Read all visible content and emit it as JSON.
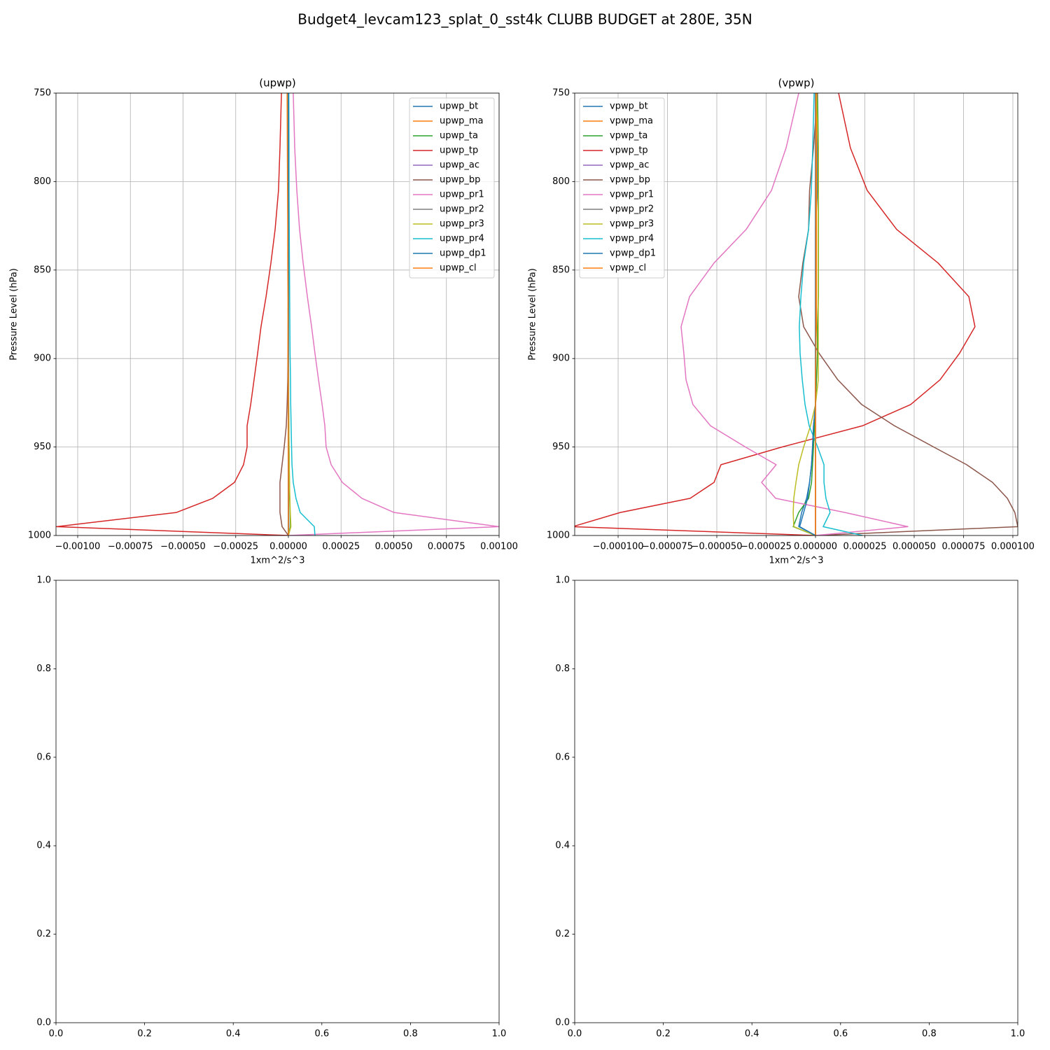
{
  "title": "Budget4_levcam123_splat_0_sst4k CLUBB BUDGET at 280E, 35N",
  "chart_data": [
    {
      "type": "line",
      "title": "(upwp)",
      "x_label": "1xm^2/s^3",
      "y_label": "Pressure Level (hPa)",
      "grid": true,
      "legend": "upper right",
      "xlim": [
        -0.001103,
        0.001
      ],
      "ylim": [
        1000,
        750
      ],
      "xticks": [
        {
          "value": -0.001,
          "label": "−0.00100"
        },
        {
          "value": -0.00075,
          "label": "−0.00075"
        },
        {
          "value": -0.0005,
          "label": "−0.00050"
        },
        {
          "value": -0.00025,
          "label": "−0.00025"
        },
        {
          "value": 0,
          "label": "0.00000"
        },
        {
          "value": 0.00025,
          "label": "0.00025"
        },
        {
          "value": 0.0005,
          "label": "0.00050"
        },
        {
          "value": 0.00075,
          "label": "0.00075"
        },
        {
          "value": 0.001,
          "label": "0.00100"
        }
      ],
      "yticks": [
        750,
        800,
        850,
        900,
        950,
        1000
      ],
      "y": [
        750,
        781,
        805,
        827,
        846,
        865,
        882,
        897,
        912,
        926,
        938,
        950,
        960,
        970,
        979,
        987,
        995,
        1000
      ],
      "series": [
        {
          "name": "upwp_bt",
          "color": "#1f77b4",
          "values": [
            0,
            0,
            0,
            0,
            0,
            0,
            0,
            0,
            0,
            0,
            0,
            0,
            0,
            0,
            0,
            1e-06,
            2e-06,
            0
          ]
        },
        {
          "name": "upwp_ma",
          "color": "#ff7f0e",
          "values": [
            0,
            0,
            0,
            0,
            0,
            0,
            0,
            0,
            0,
            0,
            0,
            0,
            0,
            0,
            0,
            0,
            0,
            0
          ]
        },
        {
          "name": "upwp_ta",
          "color": "#2ca02c",
          "values": [
            0,
            0,
            0,
            0,
            0,
            0,
            0,
            0,
            0,
            1e-06,
            2e-06,
            3e-06,
            4e-06,
            5e-06,
            6e-06,
            8e-06,
            1e-05,
            0
          ]
        },
        {
          "name": "upwp_tp",
          "color": "#d62728",
          "values": [
            -3.3e-05,
            -4e-05,
            -4.7e-05,
            -6.3e-05,
            -8.3e-05,
            -0.000106,
            -0.00013,
            -0.000146,
            -0.000163,
            -0.000179,
            -0.000196,
            -0.000196,
            -0.000213,
            -0.000256,
            -0.000359,
            -0.000532,
            -0.0011,
            0
          ]
        },
        {
          "name": "upwp_ac",
          "color": "#9467bd",
          "values": [
            0,
            0,
            0,
            0,
            0,
            0,
            0,
            0,
            0,
            0,
            0,
            0,
            0,
            0,
            0,
            0,
            0,
            0
          ]
        },
        {
          "name": "upwp_bp",
          "color": "#8c564b",
          "values": [
            0,
            0,
            0,
            0,
            0,
            0,
            -1e-06,
            -2e-06,
            -3e-06,
            -6e-06,
            -1e-05,
            -2e-05,
            -3e-05,
            -4e-05,
            -4e-05,
            -4e-05,
            -3e-05,
            0
          ]
        },
        {
          "name": "upwp_pr1",
          "color": "#e377c2",
          "values": [
            2.3e-05,
            3e-05,
            4e-05,
            5.3e-05,
            7e-05,
            9e-05,
            0.00011,
            0.000126,
            0.000143,
            0.00016,
            0.000173,
            0.000179,
            0.000203,
            0.000256,
            0.000349,
            0.000502,
            0.001,
            0
          ]
        },
        {
          "name": "upwp_pr2",
          "color": "#7f7f7f",
          "values": [
            0,
            0,
            0,
            0,
            0,
            0,
            0,
            0,
            0,
            0,
            0,
            0,
            0,
            0,
            0,
            0,
            0,
            0
          ]
        },
        {
          "name": "upwp_pr3",
          "color": "#bcbd22",
          "values": [
            0,
            0,
            0,
            0,
            0,
            0,
            0,
            0,
            1e-06,
            1e-06,
            2e-06,
            3e-06,
            4e-06,
            5e-06,
            7e-06,
            9e-06,
            1.2e-05,
            0
          ]
        },
        {
          "name": "upwp_pr4",
          "color": "#17becf",
          "values": [
            2e-06,
            3e-06,
            3e-06,
            4e-06,
            5e-06,
            6e-06,
            7e-06,
            8e-06,
            1e-05,
            1.1e-05,
            1.3e-05,
            1.5e-05,
            1.7e-05,
            2.3e-05,
            3.6e-05,
            5.6e-05,
            0.000123,
            0.000126
          ]
        },
        {
          "name": "upwp_dp1",
          "color": "#1f77b4",
          "values": [
            0,
            0,
            0,
            0,
            0,
            0,
            0,
            0,
            0,
            0,
            0,
            0,
            0,
            0,
            0,
            0,
            -1e-06,
            0
          ]
        },
        {
          "name": "upwp_cl",
          "color": "#ff7f0e",
          "values": [
            -6e-06,
            -5e-06,
            -4e-06,
            -3e-06,
            -3e-06,
            -2e-06,
            -2e-06,
            -2e-06,
            -1e-06,
            -1e-06,
            -1e-06,
            -1e-06,
            0,
            0,
            0,
            0,
            0,
            0
          ]
        }
      ]
    },
    {
      "type": "line",
      "title": "(vpwp)",
      "x_label": "1xm^2/s^3",
      "y_label": "Pressure Level (hPa)",
      "grid": true,
      "legend": "upper left",
      "xlim": [
        -0.000122,
        0.0001025
      ],
      "ylim": [
        1000,
        750
      ],
      "xticks": [
        {
          "value": -0.0001,
          "label": "−0.000100"
        },
        {
          "value": -7.5e-05,
          "label": "−0.000075"
        },
        {
          "value": -5e-05,
          "label": "−0.000050"
        },
        {
          "value": -2.5e-05,
          "label": "−0.000025"
        },
        {
          "value": 0,
          "label": "0.000000"
        },
        {
          "value": 2.5e-05,
          "label": "0.000025"
        },
        {
          "value": 5e-05,
          "label": "0.000050"
        },
        {
          "value": 7.5e-05,
          "label": "0.000075"
        },
        {
          "value": 0.0001,
          "label": "0.000100"
        }
      ],
      "yticks": [
        750,
        800,
        850,
        900,
        950,
        1000
      ],
      "y": [
        750,
        781,
        805,
        827,
        846,
        865,
        882,
        897,
        912,
        926,
        938,
        950,
        960,
        970,
        979,
        987,
        995,
        1000
      ],
      "series": [
        {
          "name": "vpwp_bt",
          "color": "#1f77b4",
          "values": [
            1e-06,
            1e-06,
            1e-06,
            0,
            0,
            0,
            0,
            0,
            0,
            0,
            -1e-06,
            -1.5e-06,
            -2e-06,
            -3e-06,
            -4.5e-06,
            -7e-06,
            -8.5e-06,
            0
          ]
        },
        {
          "name": "vpwp_ma",
          "color": "#ff7f0e",
          "values": [
            5e-07,
            5e-07,
            5e-07,
            5e-07,
            5e-07,
            5e-07,
            5e-07,
            0,
            0,
            0,
            0,
            0,
            0,
            0,
            0,
            0,
            0,
            0
          ]
        },
        {
          "name": "vpwp_ta",
          "color": "#2ca02c",
          "values": [
            1e-06,
            1.5e-06,
            1.5e-06,
            1.5e-06,
            1.5e-06,
            1.5e-06,
            1e-06,
            1e-06,
            5e-07,
            0,
            -5e-07,
            -1e-06,
            -1.5e-06,
            -2e-06,
            -3.5e-06,
            -8.5e-06,
            -1.13e-05,
            0
          ]
        },
        {
          "name": "vpwp_tp",
          "color": "#d62728",
          "values": [
            1.17e-05,
            1.77e-05,
            2.62e-05,
            4.11e-05,
            6.21e-05,
            7.77e-05,
            8.08e-05,
            7.3e-05,
            6.31e-05,
            4.82e-05,
            2.38e-05,
            -1.7e-05,
            -4.79e-05,
            -5.14e-05,
            -6.35e-05,
            -9.89e-05,
            -0.000123,
            0
          ]
        },
        {
          "name": "vpwp_ac",
          "color": "#9467bd",
          "values": [
            0,
            0,
            0,
            0,
            0,
            0,
            0,
            0,
            0,
            0,
            0,
            0,
            0,
            0,
            0,
            0,
            0,
            0
          ]
        },
        {
          "name": "vpwp_bp",
          "color": "#8c564b",
          "values": [
            1e-06,
            -1e-06,
            -3e-06,
            -3.5e-06,
            -6.4e-06,
            -8.5e-06,
            -6e-06,
            1.8e-06,
            1.13e-05,
            2.34e-05,
            4e-05,
            5.99e-05,
            7.66e-05,
            8.97e-05,
            9.72e-05,
            0.000101,
            0.0001025,
            0
          ]
        },
        {
          "name": "vpwp_pr1",
          "color": "#e377c2",
          "values": [
            -8.5e-06,
            -1.49e-05,
            -2.23e-05,
            -3.51e-05,
            -5.14e-05,
            -6.38e-05,
            -6.81e-05,
            -6.67e-05,
            -6.56e-05,
            -6.21e-05,
            -5.32e-05,
            -3.55e-05,
            -1.99e-05,
            -2.73e-05,
            -2.02e-05,
            1.49e-05,
            4.68e-05,
            0
          ]
        },
        {
          "name": "vpwp_pr2",
          "color": "#7f7f7f",
          "values": [
            0,
            0,
            0,
            0,
            0,
            0,
            0,
            0,
            0,
            0,
            0,
            0,
            0,
            0,
            0,
            0,
            0,
            0
          ]
        },
        {
          "name": "vpwp_pr3",
          "color": "#bcbd22",
          "values": [
            5e-07,
            1.4e-06,
            1.4e-06,
            1.4e-06,
            1.4e-06,
            1.4e-06,
            1.4e-06,
            1.4e-06,
            1.4e-06,
            0,
            -2.5e-06,
            -6e-06,
            -8.5e-06,
            -9.9e-06,
            -1.1e-05,
            -1.13e-05,
            -1.1e-05,
            0
          ]
        },
        {
          "name": "vpwp_pr4",
          "color": "#17becf",
          "values": [
            -7e-07,
            -1.4e-06,
            -2.1e-06,
            -3.5e-06,
            -6e-06,
            -7.4e-06,
            -8.2e-06,
            -7.8e-06,
            -6.7e-06,
            -5.3e-06,
            -3.2e-06,
            1.1e-06,
            4.3e-06,
            4.3e-06,
            5.3e-06,
            7.4e-06,
            3.9e-06,
            2.38e-05
          ]
        },
        {
          "name": "vpwp_dp1",
          "color": "#1f77b4",
          "values": [
            0,
            0,
            0,
            0,
            0,
            0,
            0,
            0,
            0,
            0,
            -1e-06,
            -1.5e-06,
            -2e-06,
            -3e-06,
            -4e-06,
            -6e-06,
            -8e-06,
            0
          ]
        },
        {
          "name": "vpwp_cl",
          "color": "#ff7f0e",
          "values": [
            2e-07,
            2e-07,
            2e-07,
            2e-07,
            2e-07,
            2e-07,
            2e-07,
            2e-07,
            0,
            0,
            0,
            0,
            0,
            0,
            0,
            0,
            0,
            0
          ]
        }
      ]
    },
    {
      "type": "line",
      "xlim": [
        0,
        1
      ],
      "ylim": [
        0,
        1
      ],
      "xticks": [
        {
          "value": 0,
          "label": "0.0"
        },
        {
          "value": 0.2,
          "label": "0.2"
        },
        {
          "value": 0.4,
          "label": "0.4"
        },
        {
          "value": 0.6,
          "label": "0.6"
        },
        {
          "value": 0.8,
          "label": "0.8"
        },
        {
          "value": 1,
          "label": "1.0"
        }
      ],
      "yticks": [
        {
          "value": 0,
          "label": "0.0"
        },
        {
          "value": 0.2,
          "label": "0.2"
        },
        {
          "value": 0.4,
          "label": "0.4"
        },
        {
          "value": 0.6,
          "label": "0.6"
        },
        {
          "value": 0.8,
          "label": "0.8"
        },
        {
          "value": 1,
          "label": "1.0"
        }
      ],
      "series": []
    },
    {
      "type": "line",
      "xlim": [
        0,
        1
      ],
      "ylim": [
        0,
        1
      ],
      "xticks": [
        {
          "value": 0,
          "label": "0.0"
        },
        {
          "value": 0.2,
          "label": "0.2"
        },
        {
          "value": 0.4,
          "label": "0.4"
        },
        {
          "value": 0.6,
          "label": "0.6"
        },
        {
          "value": 0.8,
          "label": "0.8"
        },
        {
          "value": 1,
          "label": "1.0"
        }
      ],
      "yticks": [
        {
          "value": 0,
          "label": "0.0"
        },
        {
          "value": 0.2,
          "label": "0.2"
        },
        {
          "value": 0.4,
          "label": "0.4"
        },
        {
          "value": 0.6,
          "label": "0.6"
        },
        {
          "value": 0.8,
          "label": "0.8"
        },
        {
          "value": 1,
          "label": "1.0"
        }
      ],
      "series": []
    }
  ]
}
